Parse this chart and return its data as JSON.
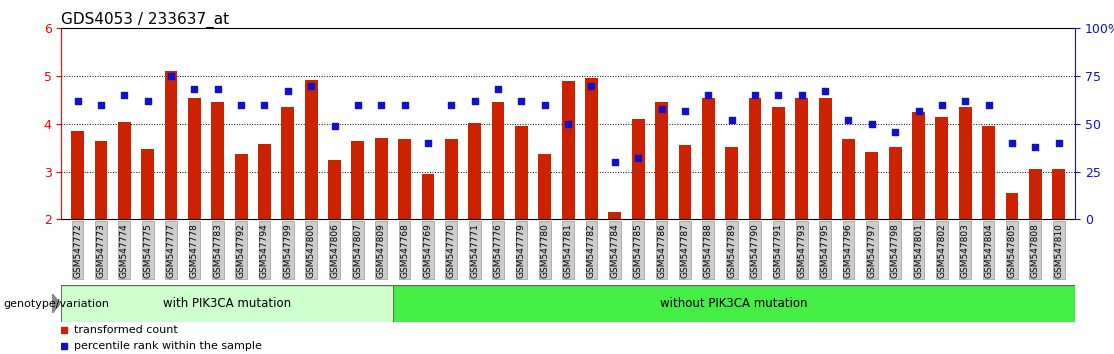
{
  "title": "GDS4053 / 233637_at",
  "samples": [
    "GSM547772",
    "GSM547773",
    "GSM547774",
    "GSM547775",
    "GSM547777",
    "GSM547778",
    "GSM547783",
    "GSM547792",
    "GSM547794",
    "GSM547799",
    "GSM547800",
    "GSM547806",
    "GSM547807",
    "GSM547809",
    "GSM547768",
    "GSM547769",
    "GSM547770",
    "GSM547771",
    "GSM547776",
    "GSM547779",
    "GSM547780",
    "GSM547781",
    "GSM547782",
    "GSM547784",
    "GSM547785",
    "GSM547786",
    "GSM547787",
    "GSM547788",
    "GSM547789",
    "GSM547790",
    "GSM547791",
    "GSM547793",
    "GSM547795",
    "GSM547796",
    "GSM547797",
    "GSM547798",
    "GSM547801",
    "GSM547802",
    "GSM547803",
    "GSM547804",
    "GSM547805",
    "GSM547808",
    "GSM547810"
  ],
  "bar_values": [
    3.85,
    3.65,
    4.05,
    3.48,
    5.1,
    4.55,
    4.45,
    3.38,
    3.58,
    4.35,
    4.92,
    3.25,
    3.65,
    3.7,
    3.68,
    2.95,
    3.68,
    4.02,
    4.45,
    3.95,
    3.38,
    4.9,
    4.95,
    2.15,
    4.1,
    4.45,
    3.55,
    4.55,
    3.52,
    4.55,
    4.35,
    4.55,
    4.55,
    3.68,
    3.42,
    3.52,
    4.25,
    4.15,
    4.35,
    3.95,
    2.55,
    3.05,
    3.05
  ],
  "percentile_values": [
    62,
    60,
    65,
    62,
    75,
    68,
    68,
    60,
    60,
    67,
    70,
    49,
    60,
    60,
    60,
    40,
    60,
    62,
    68,
    62,
    60,
    50,
    70,
    30,
    32,
    58,
    57,
    65,
    52,
    65,
    65,
    65,
    67,
    52,
    50,
    46,
    57,
    60,
    62,
    60,
    40,
    38,
    40
  ],
  "group1_count": 14,
  "group1_label": "with PIK3CA mutation",
  "group2_label": "without PIK3CA mutation",
  "ymin": 2,
  "ymax": 6,
  "yticks_left": [
    2,
    3,
    4,
    5,
    6
  ],
  "yticks_right": [
    0,
    25,
    50,
    75,
    100
  ],
  "bar_color": "#cc2200",
  "dot_color": "#1111cc",
  "bar_bottom": 2,
  "legend_transformed": "transformed count",
  "legend_percentile": "percentile rank within the sample",
  "group1_color": "#ccffcc",
  "group2_color": "#44ee44",
  "tick_bg_color": "#cccccc",
  "genotype_label": "genotype/variation"
}
